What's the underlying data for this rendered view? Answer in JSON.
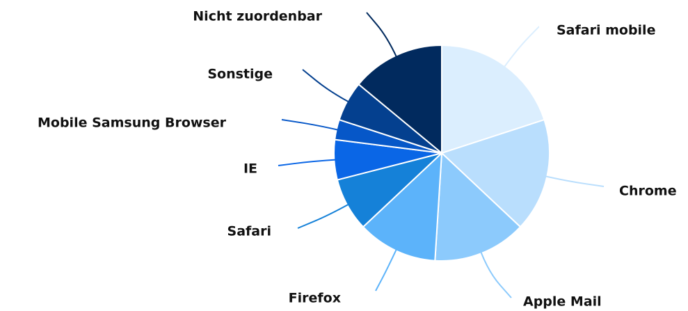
{
  "chart_data": {
    "type": "pie",
    "categories": [
      "Safari mobile",
      "Chrome",
      "Apple Mail",
      "Firefox",
      "Safari",
      "IE",
      "Mobile Samsung Browser",
      "Sonstige",
      "Nicht zuordenbar"
    ],
    "values": [
      20,
      17,
      14,
      12,
      8,
      6,
      3,
      6,
      14
    ],
    "colors": [
      "#dbeefe",
      "#b9defd",
      "#8ccafc",
      "#5cb3fa",
      "#1581d8",
      "#0a66e6",
      "#0657c8",
      "#04408f",
      "#012a5e"
    ]
  }
}
